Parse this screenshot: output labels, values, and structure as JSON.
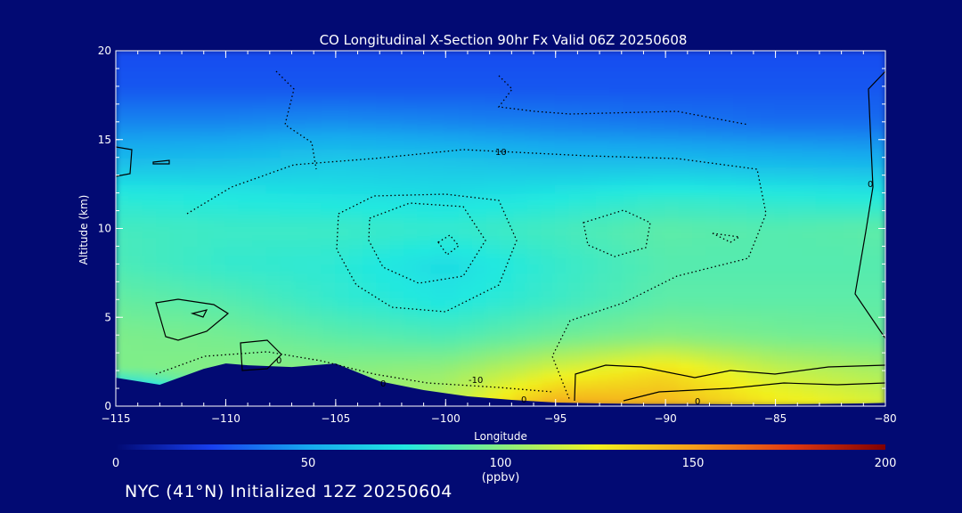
{
  "chart_data": {
    "type": "heatmap",
    "title": "CO Longitudinal X-Section 90hr  Fx Valid 06Z 20250608",
    "xlabel": "Longitude",
    "ylabel": "Altitude (km)",
    "xlim": [
      -115,
      -80
    ],
    "ylim": [
      0,
      20
    ],
    "x_ticks": [
      "-115",
      "-110",
      "-105",
      "-100",
      "-95",
      "-90",
      "-85",
      "-80"
    ],
    "y_ticks": [
      "0",
      "5",
      "10",
      "15",
      "20"
    ],
    "colorbar": {
      "min": 0,
      "max": 200,
      "ticks": [
        "0",
        "50",
        "100",
        "150",
        "200"
      ],
      "unit": "(ppbv)",
      "colors": [
        "#020a73",
        "#1840f0",
        "#16a8ee",
        "#21e8e0",
        "#86ee82",
        "#f2f21e",
        "#f5a01a",
        "#e23a12",
        "#800000"
      ]
    },
    "contour_labels": [
      "10",
      "0",
      "-10",
      "0",
      "0",
      "0",
      "0"
    ],
    "co_field": {
      "longitudes": [
        -115,
        -110,
        -105,
        -100,
        -95,
        -90,
        -85,
        -80
      ],
      "altitudes_km": [
        0,
        2,
        4,
        6,
        8,
        10,
        12,
        14,
        16,
        18,
        20
      ],
      "values_ppbv": [
        [
          null,
          104,
          104,
          112,
          150,
          145,
          130,
          120
        ],
        [
          null,
          100,
          101,
          104,
          120,
          132,
          115,
          108
        ],
        [
          98,
          96,
          90,
          86,
          94,
          100,
          96,
          94
        ],
        [
          92,
          88,
          80,
          74,
          82,
          90,
          90,
          90
        ],
        [
          86,
          80,
          78,
          70,
          80,
          88,
          88,
          88
        ],
        [
          84,
          82,
          82,
          80,
          84,
          90,
          88,
          90
        ],
        [
          76,
          74,
          72,
          70,
          74,
          78,
          76,
          74
        ],
        [
          56,
          58,
          62,
          60,
          56,
          56,
          54,
          52
        ],
        [
          42,
          42,
          44,
          42,
          40,
          38,
          36,
          36
        ],
        [
          30,
          30,
          30,
          30,
          30,
          30,
          30,
          30
        ],
        [
          28,
          28,
          28,
          28,
          28,
          28,
          28,
          28
        ]
      ]
    },
    "terrain_km": {
      "longitudes": [
        -115,
        -113,
        -111,
        -110,
        -109,
        -107,
        -105,
        -103,
        -101,
        -99,
        -97,
        -95,
        -93,
        -91,
        -89,
        -87,
        -85,
        -83,
        -81,
        -80
      ],
      "height": [
        1.6,
        1.2,
        2.1,
        2.4,
        2.3,
        2.2,
        2.4,
        1.4,
        0.9,
        0.55,
        0.35,
        0.2,
        0.15,
        0.12,
        0.12,
        0.1,
        0.1,
        0.12,
        0.15,
        0.18
      ]
    }
  },
  "footer": {
    "caption": "NYC (41°N) Initialized 12Z 20250604"
  }
}
